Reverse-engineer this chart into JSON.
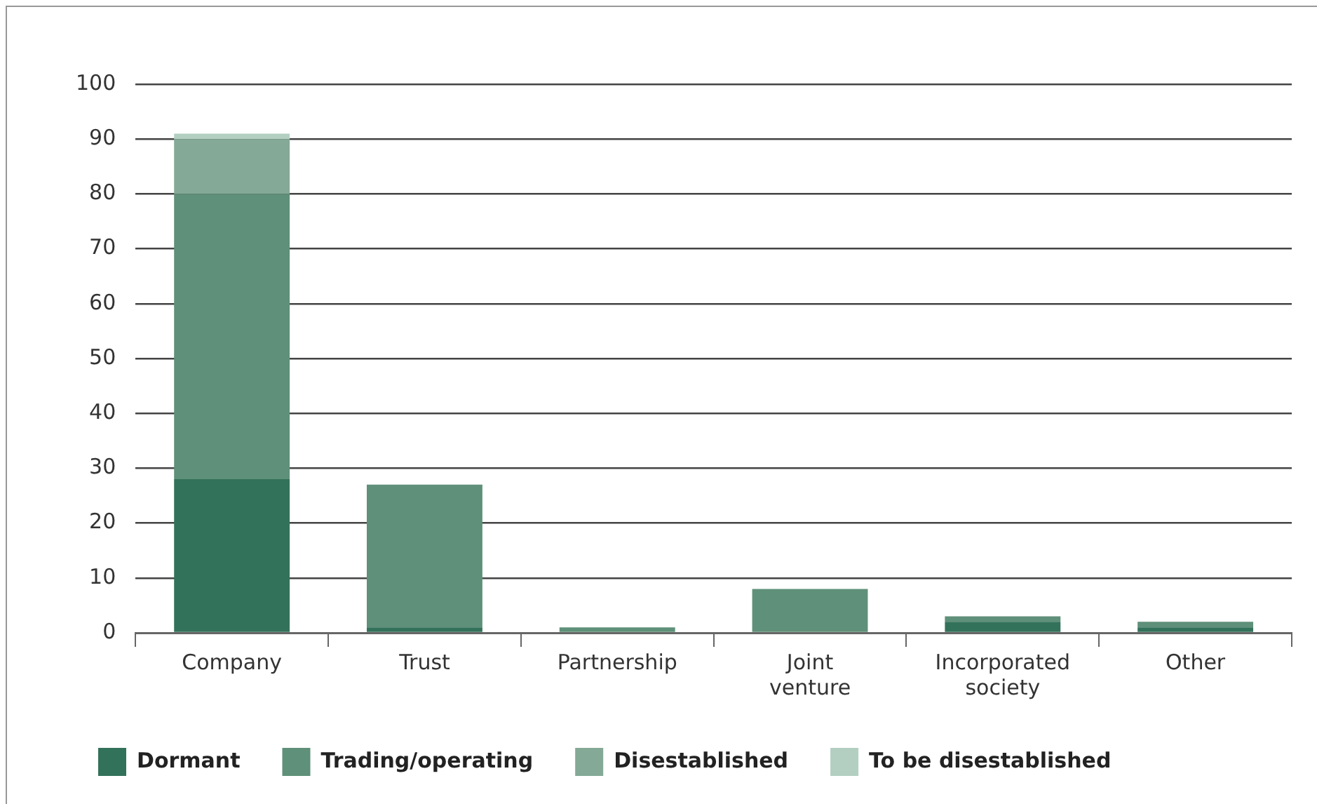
{
  "chart_data": {
    "type": "bar",
    "stacked": true,
    "categories": [
      "Company",
      "Trust",
      "Partnership",
      "Joint venture",
      "Incorporated society",
      "Other"
    ],
    "series": [
      {
        "name": "Dormant",
        "color": "#33725a",
        "values": [
          28,
          1,
          0,
          0,
          2,
          1
        ]
      },
      {
        "name": "Trading/operating",
        "color": "#5f9079",
        "values": [
          52,
          26,
          1,
          8,
          1,
          1
        ]
      },
      {
        "name": "Disestablished",
        "color": "#84a996",
        "values": [
          10,
          0,
          0,
          0,
          0,
          0
        ]
      },
      {
        "name": "To be disestablished",
        "color": "#b3cfc2",
        "values": [
          1,
          0,
          0,
          0,
          0,
          0
        ]
      }
    ],
    "ylim": [
      0,
      100
    ],
    "yticks": [
      0,
      10,
      20,
      30,
      40,
      50,
      60,
      70,
      80,
      90,
      100
    ],
    "grid": "y",
    "legend": "bottom"
  }
}
